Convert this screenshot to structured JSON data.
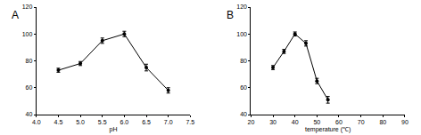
{
  "chart_data": [
    {
      "type": "line",
      "title": "A",
      "x_label": "pH",
      "x": [
        4.5,
        5.0,
        5.5,
        6.0,
        6.5,
        7.0
      ],
      "values": [
        73,
        78,
        95,
        100,
        75,
        58
      ],
      "errors": [
        1.5,
        1.5,
        2,
        2,
        2.5,
        2
      ],
      "color": "#000000",
      "marker": "circle",
      "xlim": [
        4,
        7.5
      ],
      "xticks": [
        {
          "value": 4,
          "label": "4.0"
        },
        4.5,
        {
          "value": 5,
          "label": "5.0"
        },
        5.5,
        {
          "value": 6,
          "label": "6.0"
        },
        6.5,
        {
          "value": 7,
          "label": "7.0"
        },
        7.5
      ],
      "ylim": [
        40,
        120
      ],
      "yticks": [
        40,
        60,
        80,
        100,
        120
      ],
      "grid": false
    },
    {
      "type": "line",
      "title": "B",
      "x_label": "temperature (℃)",
      "x": [
        30,
        35,
        40,
        45,
        50,
        55
      ],
      "values": [
        75,
        87,
        100,
        93,
        65,
        51
      ],
      "errors": [
        1.5,
        1.5,
        1.5,
        2,
        2,
        2.5
      ],
      "color": "#000000",
      "marker": "circle",
      "xlim": [
        20,
        90
      ],
      "xticks": [
        20,
        30,
        40,
        50,
        60,
        70,
        80,
        90
      ],
      "ylim": [
        40,
        120
      ],
      "yticks": [
        40,
        60,
        80,
        100,
        120
      ],
      "grid": false
    }
  ]
}
